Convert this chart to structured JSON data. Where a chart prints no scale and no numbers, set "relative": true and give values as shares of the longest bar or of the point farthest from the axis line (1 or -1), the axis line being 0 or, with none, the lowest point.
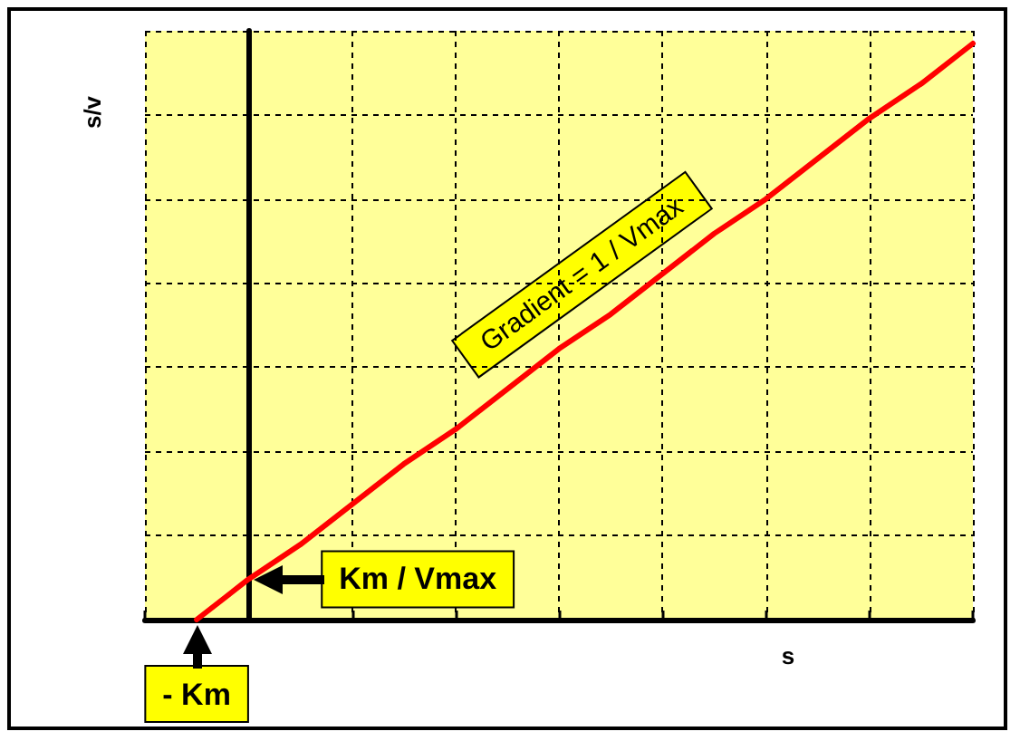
{
  "chart_data": {
    "type": "line",
    "xlabel": "s",
    "ylabel": "s/v",
    "relative": true,
    "grid": true,
    "marker": "none",
    "line_style": "solid",
    "categories": [
      null,
      null,
      null,
      null,
      null,
      null,
      null,
      null,
      null,
      null,
      null,
      null,
      null,
      null,
      null,
      null,
      null
    ],
    "series": [
      {
        "color": "#ff0000",
        "values": [
          null,
          0,
          0.07,
          0.13,
          0.2,
          0.27,
          0.33,
          0.4,
          0.47,
          0.53,
          0.6,
          0.67,
          0.73,
          0.8,
          0.87,
          0.93,
          1
        ]
      }
    ],
    "annotations": [
      "Gradient = 1 / Vmax",
      "Km / Vmax",
      "- Km"
    ]
  }
}
